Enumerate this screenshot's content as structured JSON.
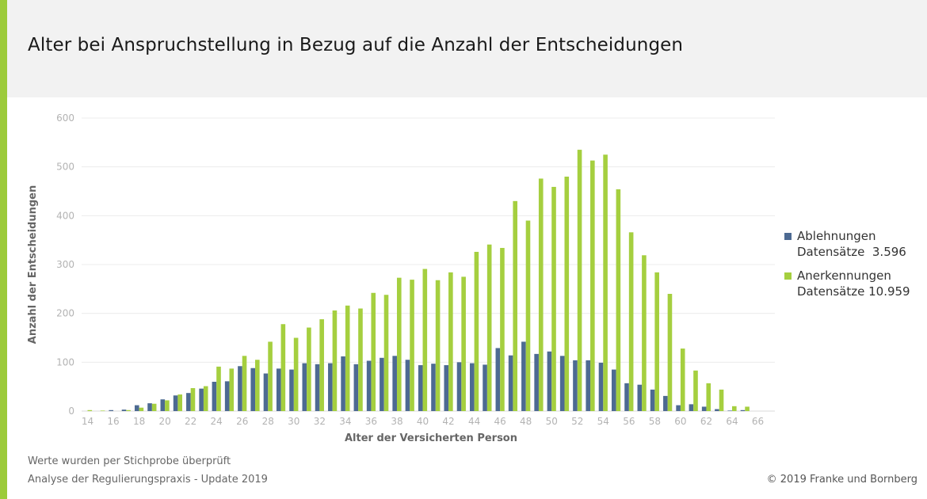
{
  "title": "Alter bei Anspruchstellung in Bezug auf die Anzahl der Entscheidungen",
  "colors": {
    "accent": "#9ccb3b",
    "ablehnungen": "#4d6a92",
    "anerkennungen": "#a5cf3f",
    "header_bg": "#f2f2f2",
    "grid": "#ececec",
    "axis_text": "#b3b3b3"
  },
  "legend": [
    {
      "name": "Ablehnungen",
      "sub": "Datensätze  3.596"
    },
    {
      "name": "Anerkennungen",
      "sub": "Datensätze 10.959"
    }
  ],
  "footer": {
    "note1": "Werte wurden per Stichprobe überprüft",
    "note2": "Analyse der Regulierungspraxis - Update 2019",
    "copyright": "© 2019 Franke und Bornberg"
  },
  "chart_data": {
    "type": "bar",
    "xlabel": "Alter der Versicherten Person",
    "ylabel": "Anzahl der Entscheidungen",
    "ylim": [
      0,
      600
    ],
    "yticks": [
      "0",
      "100",
      "200",
      "300",
      "400",
      "500",
      "600"
    ],
    "grid": true,
    "legend_position": "right",
    "categories": [
      14,
      15,
      16,
      17,
      18,
      19,
      20,
      21,
      22,
      23,
      24,
      25,
      26,
      27,
      28,
      29,
      30,
      31,
      32,
      33,
      34,
      35,
      36,
      37,
      38,
      39,
      40,
      41,
      42,
      43,
      44,
      45,
      46,
      47,
      48,
      49,
      50,
      51,
      52,
      53,
      54,
      55,
      56,
      57,
      58,
      59,
      60,
      61,
      62,
      63,
      64,
      65,
      66
    ],
    "xticks": [
      "14",
      "16",
      "18",
      "20",
      "22",
      "24",
      "26",
      "28",
      "30",
      "32",
      "34",
      "36",
      "38",
      "40",
      "42",
      "44",
      "46",
      "48",
      "50",
      "52",
      "54",
      "56",
      "58",
      "60",
      "62",
      "64",
      "66"
    ],
    "series": [
      {
        "name": "Ablehnungen",
        "values": [
          0,
          0,
          2,
          3,
          12,
          16,
          24,
          32,
          37,
          46,
          60,
          61,
          92,
          88,
          77,
          87,
          85,
          98,
          96,
          98,
          112,
          96,
          103,
          109,
          113,
          105,
          94,
          97,
          94,
          100,
          98,
          95,
          129,
          114,
          142,
          117,
          122,
          113,
          104,
          104,
          99,
          85,
          57,
          54,
          44,
          31,
          12,
          14,
          9,
          4,
          1,
          2,
          0
        ]
      },
      {
        "name": "Anerkennungen",
        "values": [
          2,
          1,
          0,
          2,
          7,
          15,
          22,
          34,
          47,
          51,
          91,
          87,
          113,
          105,
          142,
          178,
          150,
          171,
          188,
          206,
          216,
          210,
          242,
          238,
          273,
          269,
          291,
          268,
          284,
          275,
          326,
          341,
          334,
          430,
          390,
          476,
          459,
          480,
          535,
          513,
          525,
          454,
          366,
          319,
          284,
          240,
          128,
          83,
          57,
          44,
          10,
          9,
          0
        ]
      }
    ]
  }
}
